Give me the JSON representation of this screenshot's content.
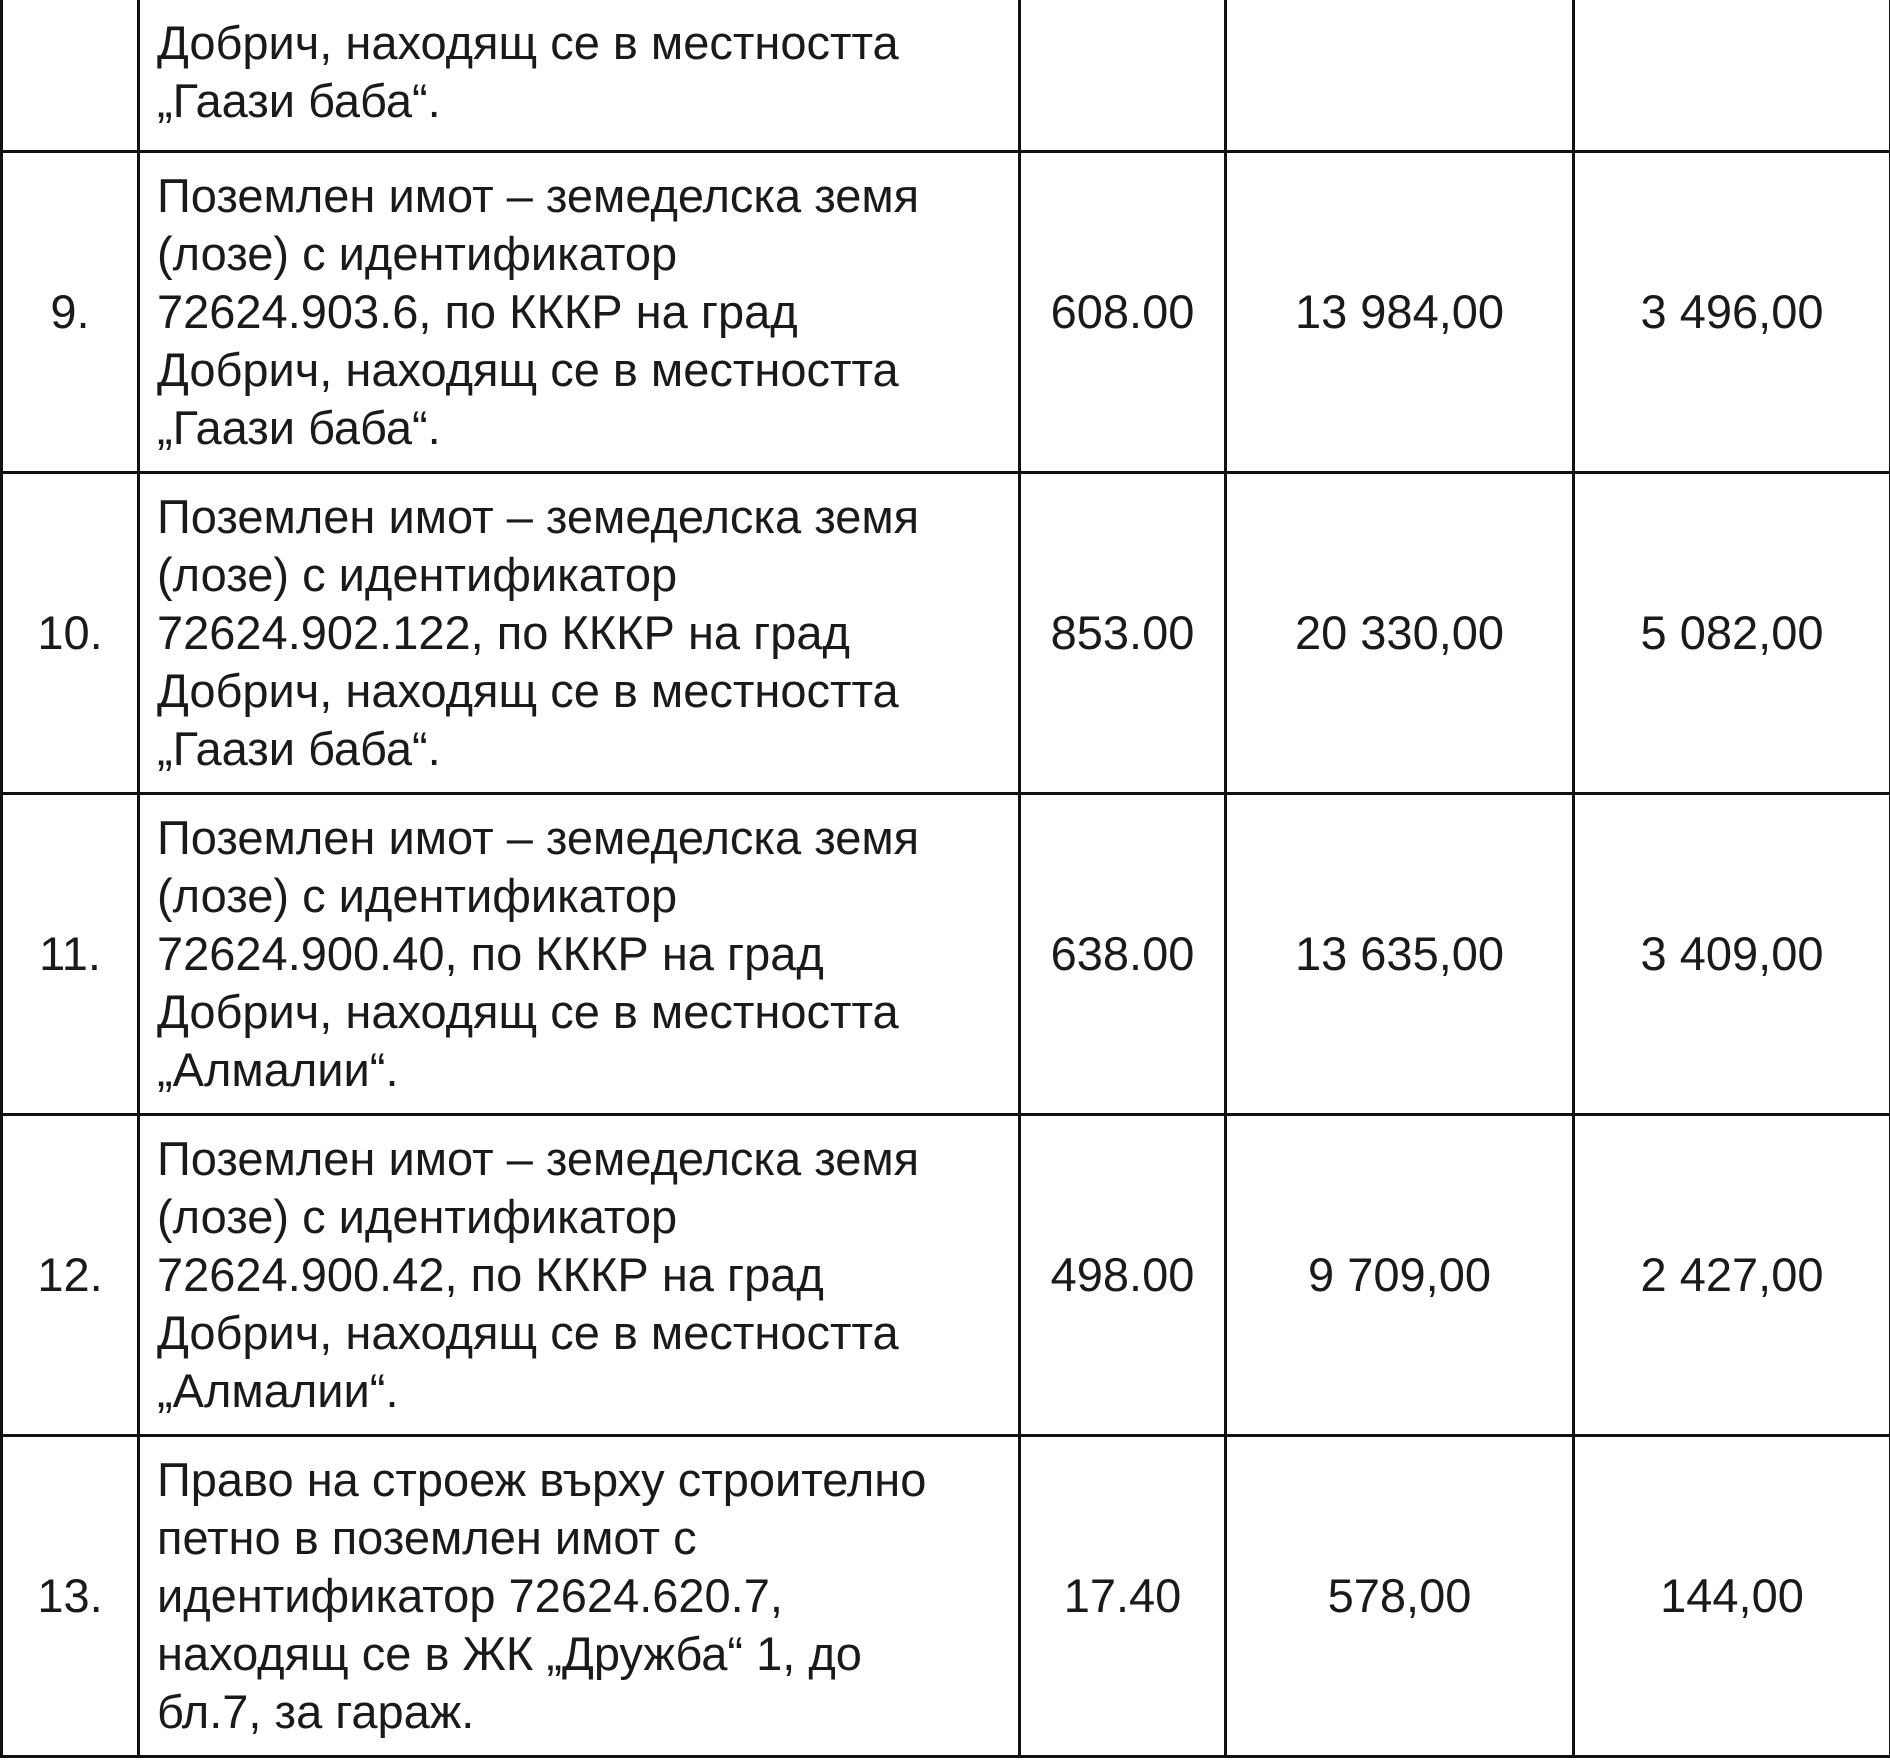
{
  "rows": [
    {
      "num": "",
      "desc": "Добрич, находящ се в местността\n„Гаази баба“.",
      "area": "",
      "value1": "",
      "value2": ""
    },
    {
      "num": "9.",
      "desc": "Поземлен имот – земеделска земя\n(лозе) с идентификатор\n72624.903.6, по КККР на град\nДобрич, находящ се в местността\n„Гаази баба“.",
      "area": "608.00",
      "value1": "13 984,00",
      "value2": "3 496,00"
    },
    {
      "num": "10.",
      "desc": "Поземлен имот – земеделска земя\n(лозе) с идентификатор\n72624.902.122, по КККР на град\nДобрич, находящ се в местността\n„Гаази баба“.",
      "area": "853.00",
      "value1": "20 330,00",
      "value2": "5 082,00"
    },
    {
      "num": "11.",
      "desc": "Поземлен имот – земеделска земя\n(лозе) с идентификатор\n72624.900.40, по КККР на град\nДобрич, находящ се в местността\n„Алмалии“.",
      "area": "638.00",
      "value1": "13 635,00",
      "value2": "3 409,00"
    },
    {
      "num": "12.",
      "desc": "Поземлен имот – земеделска земя\n(лозе) с идентификатор\n72624.900.42, по КККР на град\nДобрич, находящ се в местността\n„Алмалии“.",
      "area": "498.00",
      "value1": "9 709,00",
      "value2": "2 427,00"
    },
    {
      "num": "13.",
      "desc": "Право на строеж върху строително\nпетно в поземлен имот с\nидентификатор 72624.620.7,\nнаходящ се в ЖК „Дружба“ 1, до\nбл.7, за гараж.",
      "area": "17.40",
      "value1": "578,00",
      "value2": "144,00"
    }
  ]
}
